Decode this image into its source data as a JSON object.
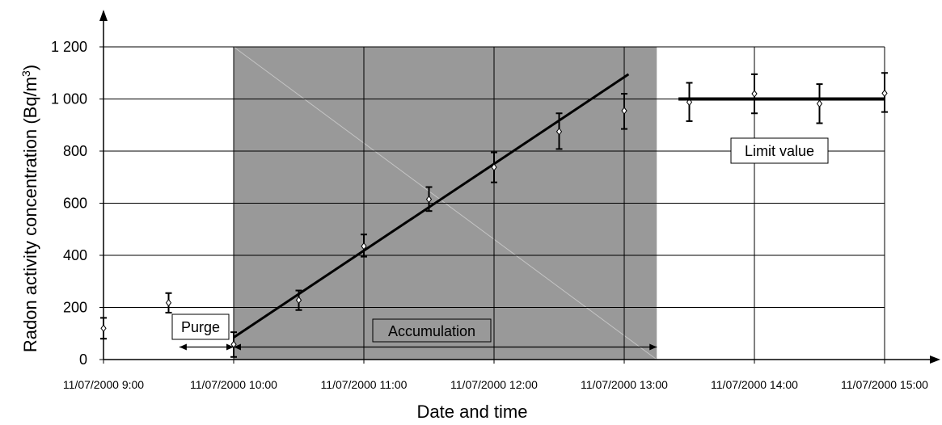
{
  "chart_data": {
    "type": "scatter",
    "xlabel": "Date and time",
    "ylabel": "Radon activity concentration (Bq/m",
    "ylabel_superscript": "3",
    "ylabel_suffix": ")",
    "x_ticks": [
      {
        "t": 0,
        "label": "11/07/2000 9:00"
      },
      {
        "t": 1,
        "label": "11/07/2000 10:00"
      },
      {
        "t": 2,
        "label": "11/07/2000 11:00"
      },
      {
        "t": 3,
        "label": "11/07/2000 12:00"
      },
      {
        "t": 4,
        "label": "11/07/2000 13:00"
      },
      {
        "t": 5,
        "label": "11/07/2000 14:00"
      },
      {
        "t": 6,
        "label": "11/07/2000 15:00"
      }
    ],
    "y_ticks": [
      {
        "v": 0,
        "label": "0"
      },
      {
        "v": 200,
        "label": "200"
      },
      {
        "v": 400,
        "label": "400"
      },
      {
        "v": 600,
        "label": "600"
      },
      {
        "v": 800,
        "label": "800"
      },
      {
        "v": 1000,
        "label": "1 000"
      },
      {
        "v": 1200,
        "label": "1 200"
      }
    ],
    "xlim": [
      "11/07/2000 9:00",
      "11/07/2000 15:00"
    ],
    "ylim": [
      0,
      1200
    ],
    "grid": true,
    "series": [
      {
        "points": [
          {
            "x": "11/07/2000 9:00",
            "y": 120,
            "low": 80,
            "high": 160
          },
          {
            "x": "11/07/2000 9:30",
            "y": 218,
            "low": 180,
            "high": 255
          },
          {
            "x": "11/07/2000 10:00",
            "y": 58,
            "low": 10,
            "high": 105
          },
          {
            "x": "11/07/2000 10:30",
            "y": 228,
            "low": 190,
            "high": 265
          },
          {
            "x": "11/07/2000 11:00",
            "y": 435,
            "low": 395,
            "high": 480
          },
          {
            "x": "11/07/2000 11:30",
            "y": 615,
            "low": 570,
            "high": 662
          },
          {
            "x": "11/07/2000 12:00",
            "y": 738,
            "low": 680,
            "high": 795
          },
          {
            "x": "11/07/2000 12:30",
            "y": 875,
            "low": 808,
            "high": 945
          },
          {
            "x": "11/07/2000 13:00",
            "y": 955,
            "low": 885,
            "high": 1020
          },
          {
            "x": "11/07/2000 13:30",
            "y": 988,
            "low": 915,
            "high": 1062
          },
          {
            "x": "11/07/2000 14:00",
            "y": 1020,
            "low": 945,
            "high": 1095
          },
          {
            "x": "11/07/2000 14:30",
            "y": 982,
            "low": 907,
            "high": 1057
          },
          {
            "x": "11/07/2000 15:00",
            "y": 1022,
            "low": 950,
            "high": 1100
          }
        ]
      }
    ],
    "fit_line": {
      "x_start": "11/07/2000 10:00",
      "y_start": 85,
      "x_end": "11/07/2000 13:02",
      "y_end": 1095
    },
    "limit_line": {
      "x_start": "11/07/2000 13:25",
      "x_end": "11/07/2000 15:00",
      "y": 1000
    },
    "shaded_region": {
      "x_start": "11/07/2000 10:00",
      "x_end": "11/07/2000 13:15",
      "color": "#999999"
    },
    "annotations": {
      "purge": {
        "label": "Purge",
        "x_start": "11/07/2000 9:35",
        "x_end": "11/07/2000 10:00",
        "y": 48
      },
      "accumulation": {
        "label": "Accumulation",
        "x_start": "11/07/2000 10:00",
        "x_end": "11/07/2000 13:15",
        "y": 48
      },
      "limit": {
        "label": "Limit value"
      }
    }
  }
}
